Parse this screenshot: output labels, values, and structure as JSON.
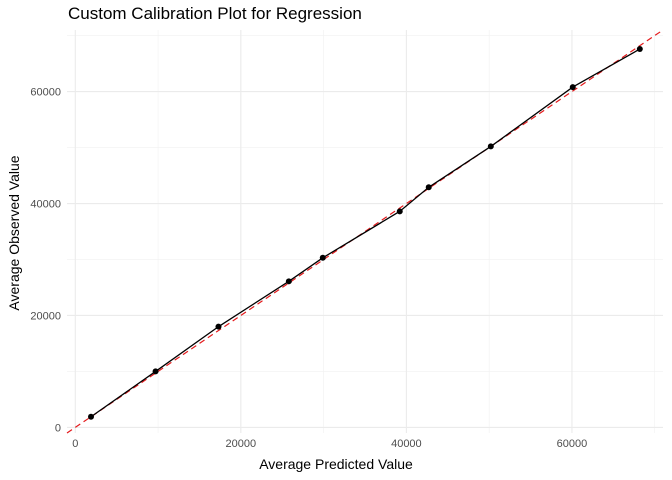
{
  "chart_data": {
    "type": "line",
    "title": "Custom Calibration Plot for Regression",
    "xlabel": "Average Predicted Value",
    "ylabel": "Average Observed Value",
    "xlim": [
      -1000,
      71000
    ],
    "ylim": [
      -1000,
      71000
    ],
    "x_ticks": [
      0,
      20000,
      40000,
      60000
    ],
    "y_ticks": [
      0,
      20000,
      40000,
      60000
    ],
    "x_tick_labels": [
      "0",
      "20000",
      "40000",
      "60000"
    ],
    "y_tick_labels": [
      "0",
      "20000",
      "40000",
      "60000"
    ],
    "grid": true,
    "series": [
      {
        "color": "#000000",
        "markers": true,
        "x": [
          1900,
          9700,
          17300,
          25800,
          29900,
          39200,
          42700,
          50200,
          60100,
          68200
        ],
        "y": [
          1900,
          10000,
          18000,
          26100,
          30300,
          38600,
          42900,
          50200,
          60800,
          67600
        ]
      }
    ],
    "reference_line": {
      "type": "identity",
      "style": "dashed",
      "color": "#e41a1c"
    }
  }
}
